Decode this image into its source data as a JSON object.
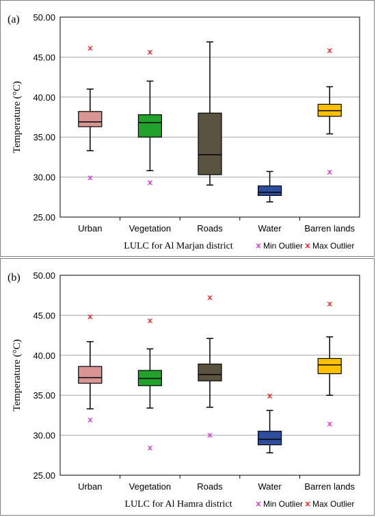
{
  "chart_data": [
    {
      "type": "box",
      "panel_label": "(a)",
      "xlabel": "LULC for Al Marjan district",
      "ylabel": "Temperature (°C)",
      "ylim": [
        25,
        50
      ],
      "yticks": [
        "25.00",
        "30.00",
        "35.00",
        "40.00",
        "45.00",
        "50.00"
      ],
      "grid": true,
      "legend": {
        "placement": "bottom-right",
        "entries": [
          "Min Outlier",
          "Max Outlier"
        ]
      },
      "categories": [
        "Urban",
        "Vegetation",
        "Roads",
        "Water",
        "Barren lands"
      ],
      "colors": [
        "#d99594",
        "#22a22a",
        "#5a5340",
        "#2e4d9b",
        "#ffc000"
      ],
      "series": [
        {
          "whisker_low": 33.3,
          "q1": 36.3,
          "median": 36.9,
          "q3": 38.2,
          "whisker_high": 41.0,
          "min_outlier": 29.9,
          "max_outlier": 46.1
        },
        {
          "whisker_low": 30.8,
          "q1": 35.0,
          "median": 36.8,
          "q3": 37.8,
          "whisker_high": 42.0,
          "min_outlier": 29.3,
          "max_outlier": 45.6
        },
        {
          "whisker_low": 29.0,
          "q1": 30.3,
          "median": 32.8,
          "q3": 38.0,
          "whisker_high": 46.9,
          "min_outlier": null,
          "max_outlier": null
        },
        {
          "whisker_low": 26.9,
          "q1": 27.7,
          "median": 28.1,
          "q3": 28.9,
          "whisker_high": 30.7,
          "min_outlier": null,
          "max_outlier": null
        },
        {
          "whisker_low": 35.4,
          "q1": 37.6,
          "median": 38.3,
          "q3": 39.1,
          "whisker_high": 41.3,
          "min_outlier": 30.6,
          "max_outlier": 45.8
        }
      ]
    },
    {
      "type": "box",
      "panel_label": "(b)",
      "xlabel": "LULC for Al Hamra district",
      "ylabel": "Temperature (°C)",
      "ylim": [
        25,
        50
      ],
      "yticks": [
        "25.00",
        "30.00",
        "35.00",
        "40.00",
        "45.00",
        "50.00"
      ],
      "grid": true,
      "legend": {
        "placement": "bottom-right",
        "entries": [
          "Min Outlier",
          "Max Outlier"
        ]
      },
      "categories": [
        "Urban",
        "Vegetation",
        "Roads",
        "Water",
        "Barren lands"
      ],
      "colors": [
        "#d99594",
        "#22a22a",
        "#5a5340",
        "#2e4d9b",
        "#ffc000"
      ],
      "series": [
        {
          "whisker_low": 33.3,
          "q1": 36.5,
          "median": 37.2,
          "q3": 38.6,
          "whisker_high": 41.7,
          "min_outlier": 31.9,
          "max_outlier": 44.8
        },
        {
          "whisker_low": 33.4,
          "q1": 36.2,
          "median": 37.1,
          "q3": 38.1,
          "whisker_high": 40.8,
          "min_outlier": 28.4,
          "max_outlier": 44.3
        },
        {
          "whisker_low": 33.5,
          "q1": 36.8,
          "median": 37.6,
          "q3": 38.9,
          "whisker_high": 42.1,
          "min_outlier": 30.0,
          "max_outlier": 47.2
        },
        {
          "whisker_low": 27.8,
          "q1": 28.8,
          "median": 29.5,
          "q3": 30.5,
          "whisker_high": 33.1,
          "min_outlier": null,
          "max_outlier": 34.9
        },
        {
          "whisker_low": 35.0,
          "q1": 37.7,
          "median": 38.8,
          "q3": 39.6,
          "whisker_high": 42.3,
          "min_outlier": 31.4,
          "max_outlier": 46.4
        }
      ]
    }
  ],
  "legend_colors": {
    "min_outlier": "#cc33cc",
    "max_outlier": "#e02020"
  }
}
